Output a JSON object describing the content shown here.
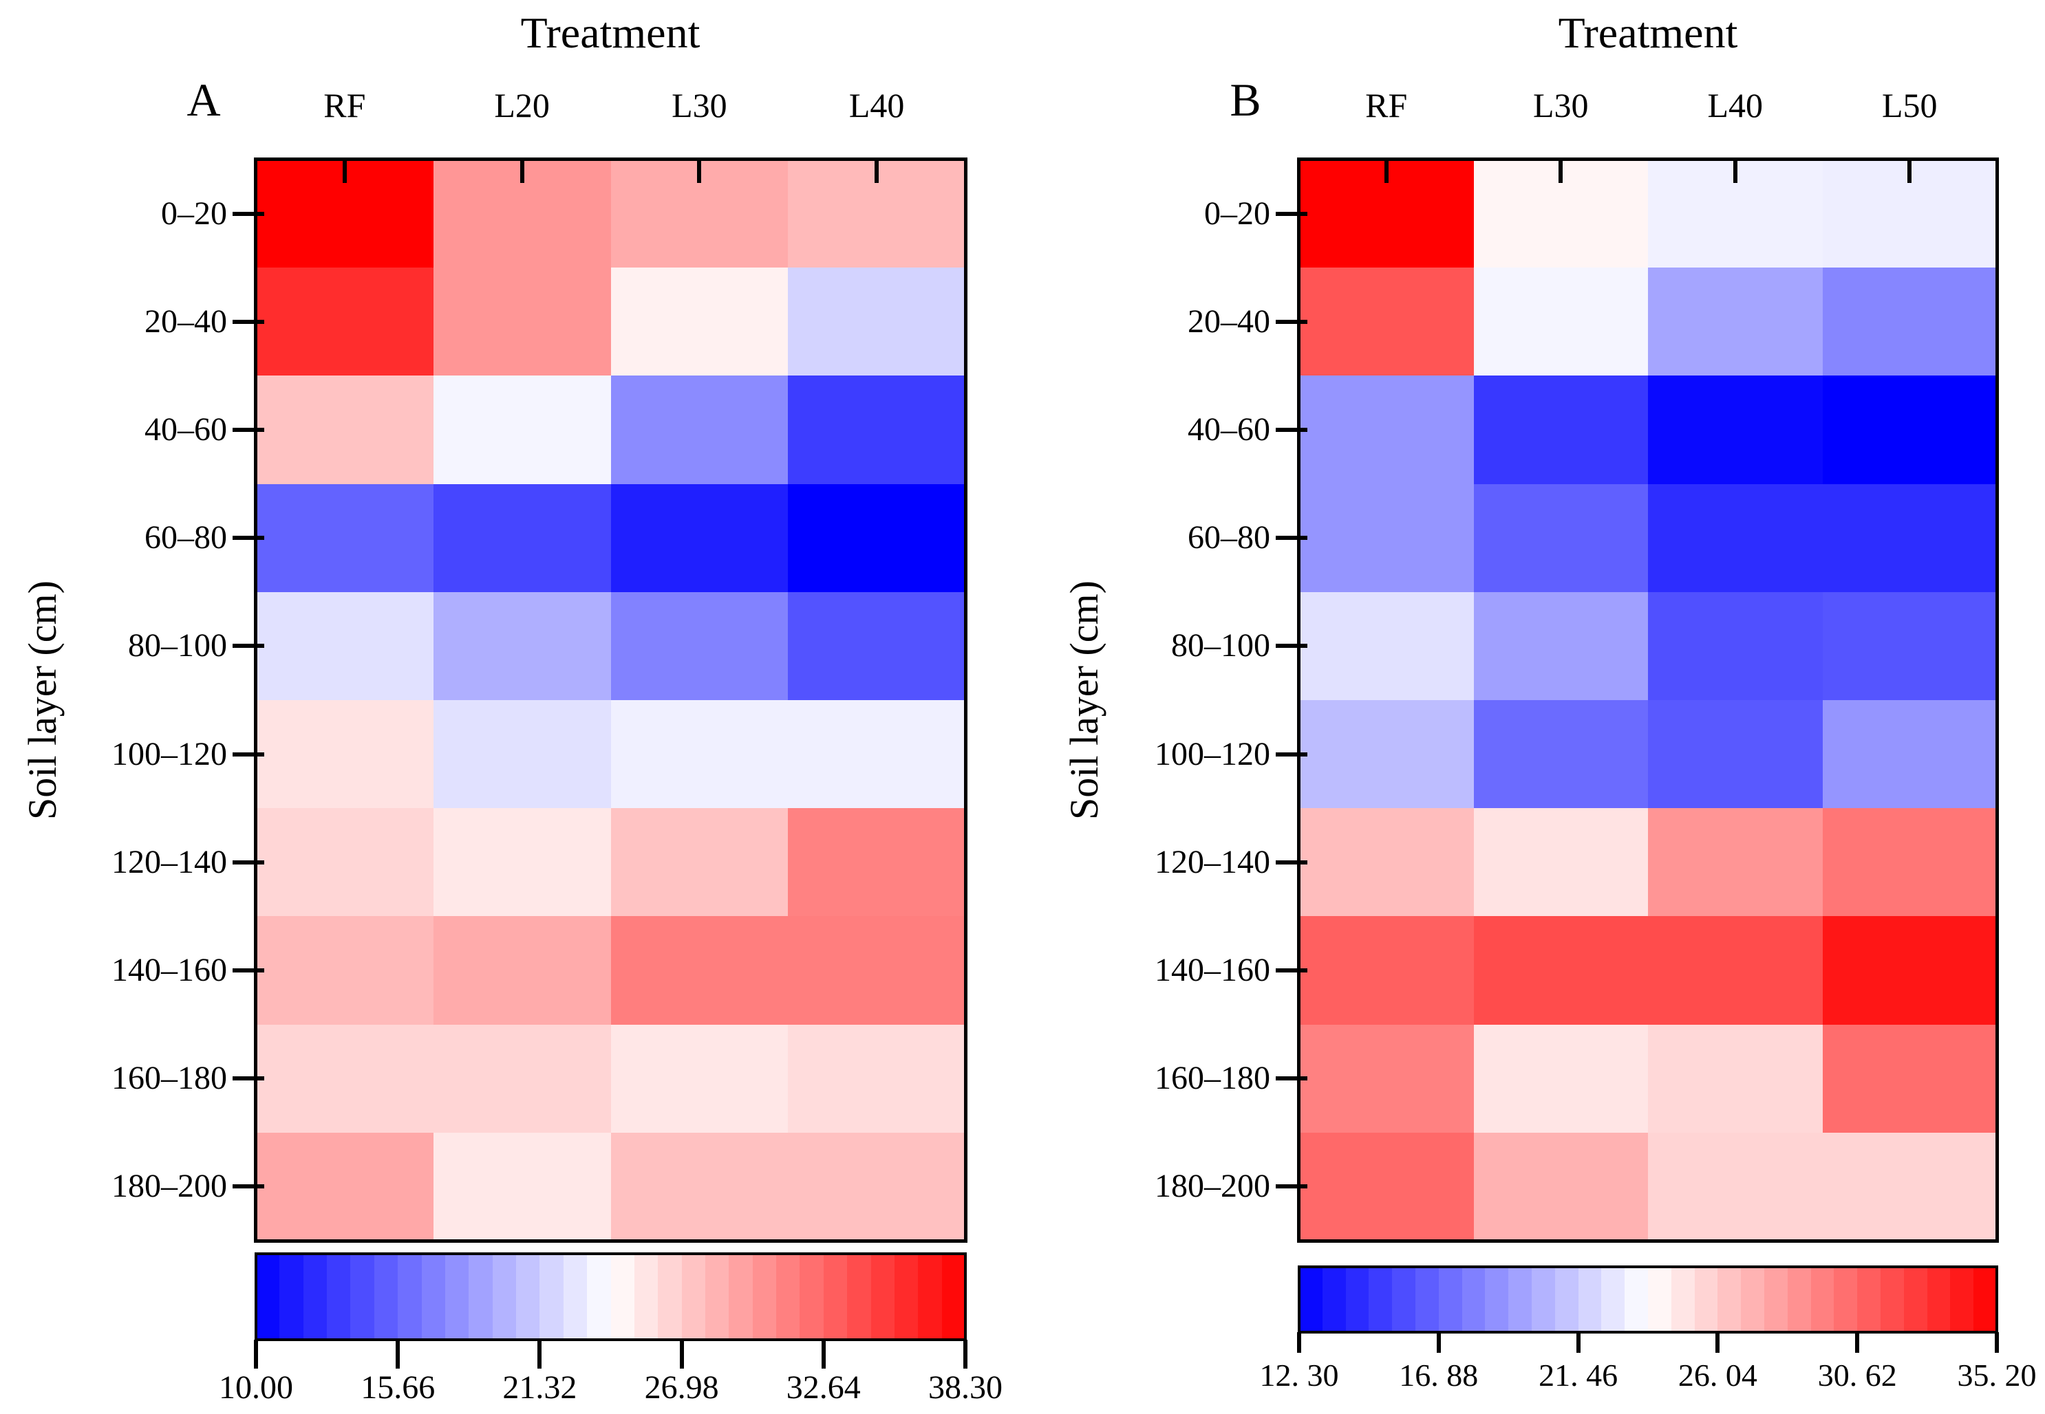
{
  "figure": {
    "background": "#ffffff",
    "colormap": {
      "name": "bwr (blue-white-red)",
      "low": "#0000FF",
      "mid": "#FFFFFF",
      "high": "#FF0000"
    }
  },
  "chart_data": [
    {
      "type": "heatmap",
      "panel_label": "A",
      "title": "Treatment",
      "xlabel": "Treatment",
      "ylabel": "Soil layer (cm)",
      "columns": [
        "RF",
        "L20",
        "L30",
        "L40"
      ],
      "rows": [
        "0–20",
        "20–40",
        "40–60",
        "60–80",
        "80–100",
        "100–120",
        "120–140",
        "140–160",
        "160–180",
        "180–200"
      ],
      "values": [
        [
          38.3,
          30.0,
          28.8,
          28.0
        ],
        [
          35.8,
          30.0,
          24.9,
          21.7
        ],
        [
          27.5,
          23.6,
          17.7,
          13.4
        ],
        [
          15.5,
          13.9,
          11.7,
          10.0
        ],
        [
          22.5,
          19.7,
          17.2,
          14.6
        ],
        [
          25.7,
          22.5,
          23.3,
          23.3
        ],
        [
          26.4,
          25.4,
          27.5,
          31.1
        ],
        [
          28.0,
          28.8,
          31.3,
          31.3
        ],
        [
          26.5,
          26.5,
          25.5,
          26.1
        ],
        [
          29.0,
          25.4,
          27.6,
          27.6
        ]
      ],
      "vmin": 10.0,
      "vmax": 38.3,
      "colorbar_ticks": [
        10.0,
        15.66,
        21.32,
        26.98,
        32.64,
        38.3
      ],
      "colorbar_tick_labels": [
        "10.00",
        "15.66",
        "21.32",
        "26.98",
        "32.64",
        "38.30"
      ],
      "colorbar_segments": 30,
      "legend_position": "bottom",
      "grid": false
    },
    {
      "type": "heatmap",
      "panel_label": "B",
      "title": "Treatment",
      "xlabel": "Treatment",
      "ylabel": "Soil layer (cm)",
      "columns": [
        "RF",
        "L30",
        "L40",
        "L50"
      ],
      "rows": [
        "0–20",
        "20–40",
        "40–60",
        "60–80",
        "80–100",
        "100–120",
        "120–140",
        "140–160",
        "160–180",
        "180–200"
      ],
      "values": [
        [
          35.2,
          24.2,
          23.1,
          23.0
        ],
        [
          31.4,
          23.3,
          19.7,
          18.3
        ],
        [
          19.0,
          14.8,
          12.7,
          12.3
        ],
        [
          19.0,
          16.6,
          14.3,
          14.3
        ],
        [
          22.4,
          19.5,
          15.9,
          16.1
        ],
        [
          20.8,
          17.1,
          16.3,
          19.0
        ],
        [
          26.7,
          25.0,
          28.5,
          29.9
        ],
        [
          30.9,
          31.8,
          31.8,
          34.2
        ],
        [
          29.4,
          24.9,
          25.5,
          30.3
        ],
        [
          30.5,
          27.2,
          25.7,
          25.7
        ]
      ],
      "vmin": 12.3,
      "vmax": 35.2,
      "colorbar_ticks": [
        12.3,
        16.88,
        21.46,
        26.04,
        30.62,
        35.2
      ],
      "colorbar_tick_labels": [
        "12. 30",
        "16. 88",
        "21. 46",
        "26. 04",
        "30. 62",
        "35. 20"
      ],
      "colorbar_segments": 30,
      "legend_position": "bottom",
      "grid": false
    }
  ]
}
